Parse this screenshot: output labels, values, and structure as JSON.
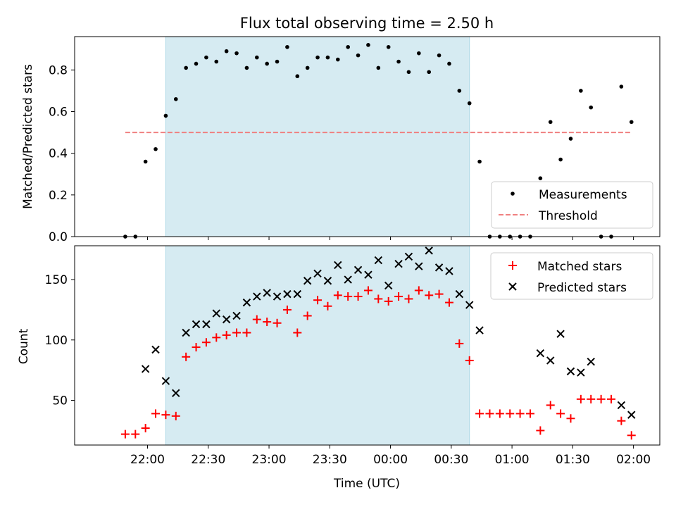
{
  "chart_data": [
    {
      "type": "scatter",
      "title": "Flux total observing time = 2.50 h",
      "xlabel": "",
      "ylabel": "Matched/Predicted stars",
      "ylim": [
        0,
        0.96
      ],
      "yticks": [
        "0.0",
        "0.2",
        "0.4",
        "0.6",
        "0.8"
      ],
      "shaded_interval": [
        "22:09",
        "00:39"
      ],
      "legend": {
        "placement": "lower-right",
        "entries": [
          "Measurements",
          "Threshold"
        ]
      },
      "series": [
        {
          "name": "Measurements",
          "marker": "dot",
          "color": "#000000",
          "x": [
            "21:54",
            "21:59",
            "22:04",
            "22:09",
            "22:14",
            "22:19",
            "22:24",
            "22:29",
            "22:34",
            "22:39",
            "22:44",
            "22:49",
            "22:54",
            "22:59",
            "23:04",
            "23:09",
            "23:14",
            "23:19",
            "23:24",
            "23:29",
            "23:34",
            "23:39",
            "23:44",
            "23:49",
            "23:54",
            "23:59",
            "00:04",
            "00:09",
            "00:14",
            "00:19",
            "00:24",
            "00:29",
            "00:34",
            "00:39",
            "00:44",
            "00:49",
            "00:54",
            "00:59",
            "01:04",
            "01:09",
            "01:14",
            "01:19",
            "01:24",
            "01:29",
            "01:34",
            "01:39",
            "01:44",
            "01:49",
            "01:54",
            "01:59"
          ],
          "values": [
            0.0,
            0.36,
            0.42,
            0.58,
            0.66,
            0.81,
            0.83,
            0.86,
            0.84,
            0.89,
            0.88,
            0.81,
            0.86,
            0.83,
            0.84,
            0.91,
            0.77,
            0.81,
            0.86,
            0.86,
            0.85,
            0.91,
            0.87,
            0.92,
            0.81,
            0.91,
            0.84,
            0.79,
            0.88,
            0.79,
            0.87,
            0.83,
            0.7,
            0.64,
            0.36,
            0.0,
            0.0,
            0.0,
            0.0,
            0.0,
            0.28,
            0.55,
            0.37,
            0.47,
            0.7,
            0.62,
            0.0,
            0.0,
            0.72,
            0.55
          ]
        },
        {
          "name": "Threshold",
          "style": "dashed",
          "color": "#f08080",
          "x": [
            "21:49",
            "01:59"
          ],
          "values": [
            0.5,
            0.5
          ]
        }
      ],
      "extra_points": {
        "x": [
          "21:49"
        ],
        "values": [
          0.0
        ]
      }
    },
    {
      "type": "scatter",
      "title": "",
      "xlabel": "Time (UTC)",
      "ylabel": "Count",
      "ylim": [
        13,
        178
      ],
      "yticks": [
        "50",
        "100",
        "150"
      ],
      "xticks": [
        "22:00",
        "22:30",
        "23:00",
        "23:30",
        "00:00",
        "00:30",
        "01:00",
        "01:30",
        "02:00"
      ],
      "shaded_interval": [
        "22:09",
        "00:39"
      ],
      "legend": {
        "placement": "top-right",
        "entries": [
          "Matched stars",
          "Predicted stars"
        ]
      },
      "series": [
        {
          "name": "Matched stars",
          "marker": "plus",
          "color": "#ff0000",
          "x": [
            "21:49",
            "21:54",
            "21:59",
            "22:04",
            "22:09",
            "22:14",
            "22:19",
            "22:24",
            "22:29",
            "22:34",
            "22:39",
            "22:44",
            "22:49",
            "22:54",
            "22:59",
            "23:04",
            "23:09",
            "23:14",
            "23:19",
            "23:24",
            "23:29",
            "23:34",
            "23:39",
            "23:44",
            "23:49",
            "23:54",
            "23:59",
            "00:04",
            "00:09",
            "00:14",
            "00:19",
            "00:24",
            "00:29",
            "00:34",
            "00:39",
            "00:44",
            "00:49",
            "00:54",
            "00:59",
            "01:04",
            "01:09",
            "01:14",
            "01:19",
            "01:24",
            "01:29",
            "01:34",
            "01:39",
            "01:44",
            "01:49",
            "01:54",
            "01:59"
          ],
          "values": [
            22,
            22,
            27,
            39,
            38,
            37,
            86,
            94,
            98,
            102,
            104,
            106,
            106,
            117,
            115,
            114,
            125,
            106,
            120,
            133,
            128,
            137,
            136,
            136,
            141,
            134,
            132,
            136,
            134,
            141,
            137,
            138,
            131,
            97,
            83,
            39,
            39,
            39,
            39,
            39,
            39,
            25,
            46,
            39,
            35,
            51,
            51,
            51,
            51,
            33,
            21
          ]
        },
        {
          "name": "Predicted stars",
          "marker": "x",
          "color": "#000000",
          "x": [
            "21:59",
            "22:04",
            "22:09",
            "22:14",
            "22:19",
            "22:24",
            "22:29",
            "22:34",
            "22:39",
            "22:44",
            "22:49",
            "22:54",
            "22:59",
            "23:04",
            "23:09",
            "23:14",
            "23:19",
            "23:24",
            "23:29",
            "23:34",
            "23:39",
            "23:44",
            "23:49",
            "23:54",
            "23:59",
            "00:04",
            "00:09",
            "00:14",
            "00:19",
            "00:24",
            "00:29",
            "00:34",
            "00:39",
            "00:44",
            "01:14",
            "01:19",
            "01:24",
            "01:29",
            "01:34",
            "01:39",
            "01:54",
            "01:59"
          ],
          "values": [
            76,
            92,
            66,
            56,
            106,
            113,
            113,
            122,
            117,
            120,
            131,
            136,
            139,
            136,
            138,
            138,
            149,
            155,
            149,
            162,
            150,
            158,
            154,
            166,
            145,
            163,
            169,
            161,
            174,
            160,
            157,
            138,
            129,
            108,
            89,
            83,
            105,
            74,
            73,
            82,
            46,
            38
          ]
        }
      ]
    }
  ]
}
